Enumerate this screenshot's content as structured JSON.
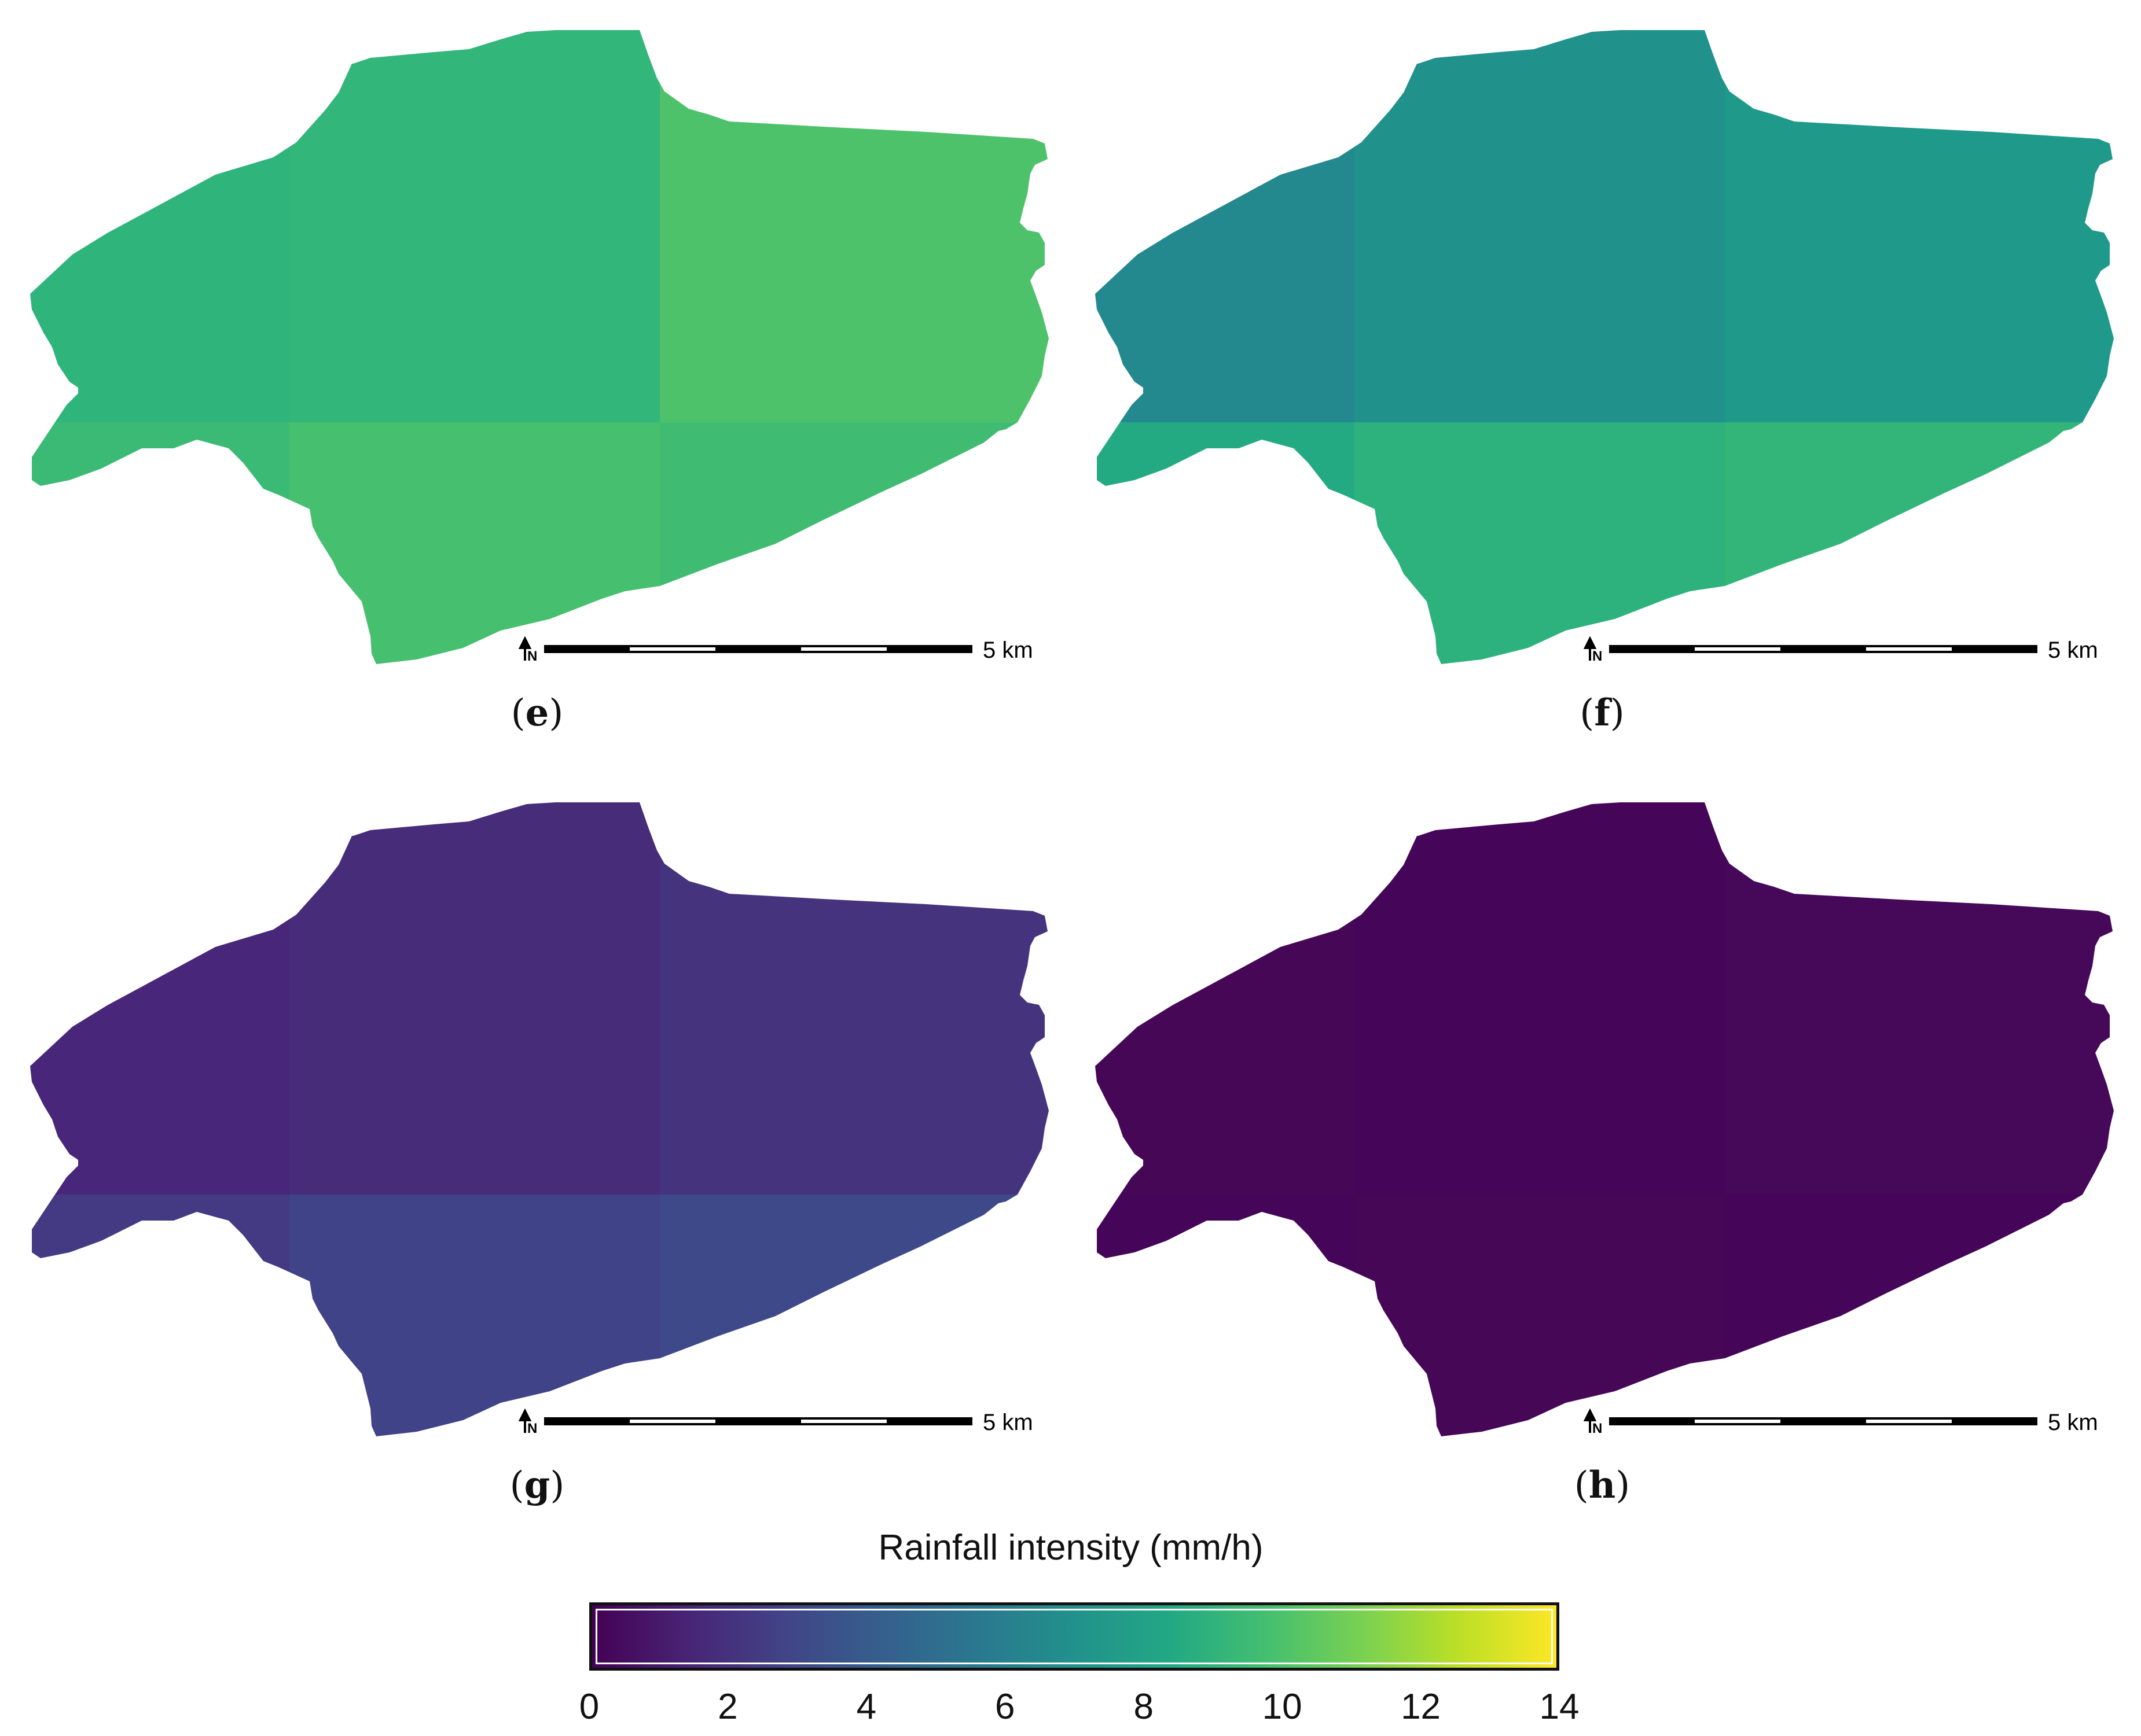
{
  "panels": [
    {
      "id": "e",
      "caption": "e",
      "scale_label": "5 km",
      "colors": {
        "nw": "#2fb47c",
        "nm": "#32b67a",
        "ne": "#4ec26b",
        "sw": "#3bba75",
        "sm": "#46bf6f",
        "se": "#40bc72"
      }
    },
    {
      "id": "f",
      "caption": "f",
      "scale_label": "5 km",
      "colors": {
        "nw": "#23898e",
        "nm": "#21918c",
        "ne": "#1f9a8a",
        "sw": "#24aa83",
        "sm": "#2db27d",
        "se": "#33b57a"
      }
    },
    {
      "id": "g",
      "caption": "g",
      "scale_label": "5 km",
      "colors": {
        "nw": "#48267a",
        "nm": "#472c7a",
        "ne": "#46337e",
        "sw": "#443a83",
        "sm": "#404387",
        "se": "#3e4989"
      }
    },
    {
      "id": "h",
      "caption": "h",
      "scale_label": "5 km",
      "colors": {
        "nw": "#460757",
        "nm": "#450559",
        "ne": "#460858",
        "sw": "#450559",
        "sm": "#460757",
        "se": "#450559"
      }
    }
  ],
  "legend": {
    "title": "Rainfall intensity (mm/h)",
    "min": 0,
    "max": 14,
    "ticks": [
      "0",
      "2",
      "4",
      "6",
      "8",
      "10",
      "12",
      "14"
    ],
    "colormap": "viridis"
  },
  "north_arrow": "N"
}
